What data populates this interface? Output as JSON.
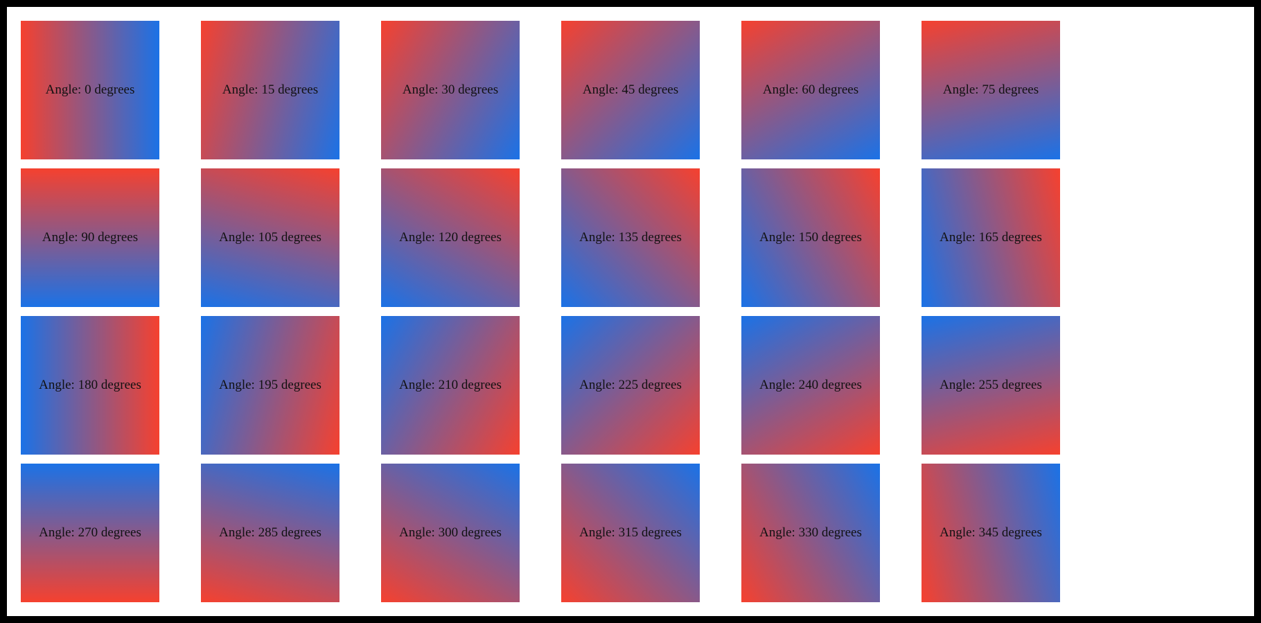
{
  "page": {
    "background_color": "#ffffff",
    "frame_color": "#000000"
  },
  "gradient": {
    "start_color": "#f5412f",
    "end_color": "#1b72e6",
    "label_text_color": "#111111"
  },
  "swatches": [
    {
      "angle": 0,
      "label": "Angle: 0 degrees"
    },
    {
      "angle": 15,
      "label": "Angle: 15 degrees"
    },
    {
      "angle": 30,
      "label": "Angle: 30 degrees"
    },
    {
      "angle": 45,
      "label": "Angle: 45 degrees"
    },
    {
      "angle": 60,
      "label": "Angle: 60 degrees"
    },
    {
      "angle": 75,
      "label": "Angle: 75 degrees"
    },
    {
      "angle": 90,
      "label": "Angle: 90 degrees"
    },
    {
      "angle": 105,
      "label": "Angle: 105 degrees"
    },
    {
      "angle": 120,
      "label": "Angle: 120 degrees"
    },
    {
      "angle": 135,
      "label": "Angle: 135 degrees"
    },
    {
      "angle": 150,
      "label": "Angle: 150 degrees"
    },
    {
      "angle": 165,
      "label": "Angle: 165 degrees"
    },
    {
      "angle": 180,
      "label": "Angle: 180 degrees"
    },
    {
      "angle": 195,
      "label": "Angle: 195 degrees"
    },
    {
      "angle": 210,
      "label": "Angle: 210 degrees"
    },
    {
      "angle": 225,
      "label": "Angle: 225 degrees"
    },
    {
      "angle": 240,
      "label": "Angle: 240 degrees"
    },
    {
      "angle": 255,
      "label": "Angle: 255 degrees"
    },
    {
      "angle": 270,
      "label": "Angle: 270 degrees"
    },
    {
      "angle": 285,
      "label": "Angle: 285 degrees"
    },
    {
      "angle": 300,
      "label": "Angle: 300 degrees"
    },
    {
      "angle": 315,
      "label": "Angle: 315 degrees"
    },
    {
      "angle": 330,
      "label": "Angle: 330 degrees"
    },
    {
      "angle": 345,
      "label": "Angle: 345 degrees"
    }
  ]
}
